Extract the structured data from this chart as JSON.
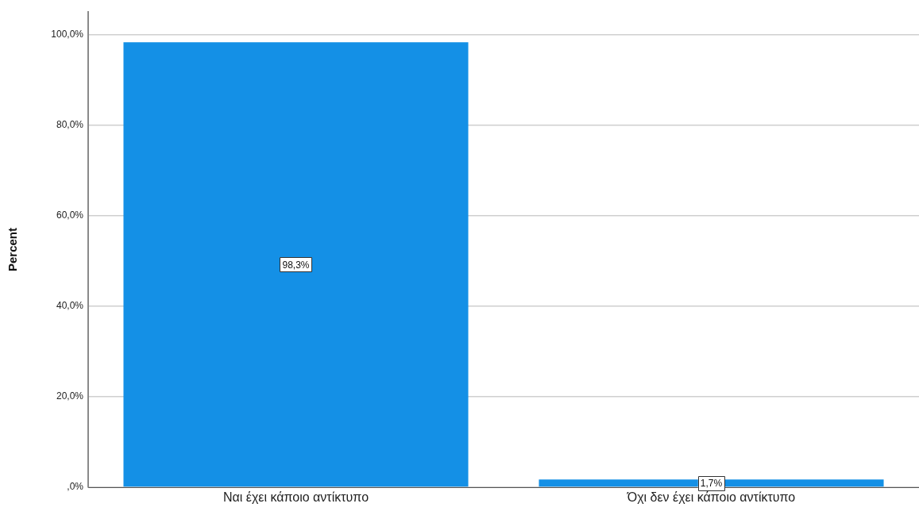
{
  "chart_data": {
    "type": "bar",
    "ylabel": "Percent",
    "categories": [
      "Ναι έχει κάποιο αντίκτυπο",
      "Όχι δεν έχει κάποιο αντίκτυπο"
    ],
    "values": [
      98.3,
      1.7
    ],
    "color": "#1490e6",
    "value_labels": [
      "98,3%",
      "1,7%"
    ],
    "ylim": [
      0,
      105
    ],
    "yticks": [
      {
        "value": 0,
        "label": ",0%"
      },
      {
        "value": 20,
        "label": "20,0%"
      },
      {
        "value": 40,
        "label": "40,0%"
      },
      {
        "value": 60,
        "label": "60,0%"
      },
      {
        "value": 80,
        "label": "80,0%"
      },
      {
        "value": 100,
        "label": "100,0%"
      }
    ],
    "grid": "y"
  }
}
